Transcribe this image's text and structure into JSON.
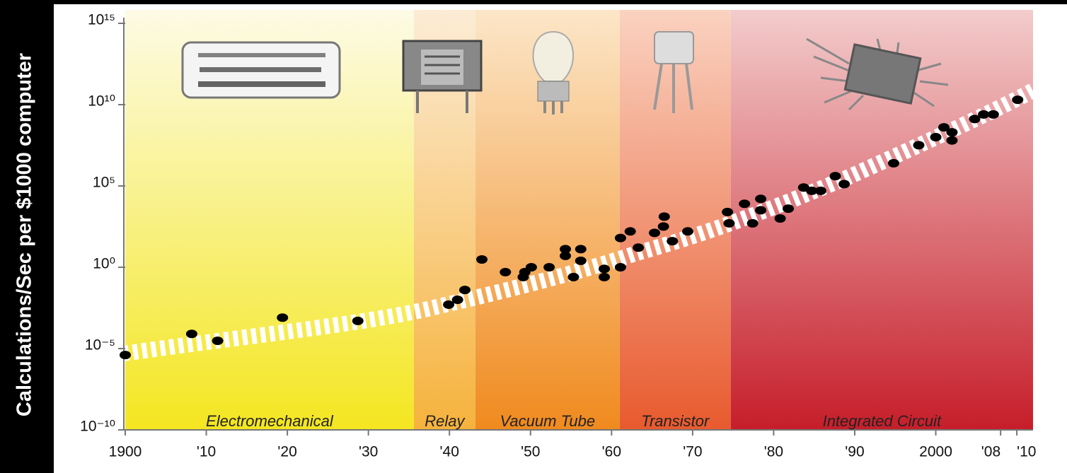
{
  "chart_data": {
    "type": "scatter",
    "y_label": "Calculations/Sec per $1000 computer",
    "log_y": true,
    "xlim": [
      1900,
      2012
    ],
    "ylim": [
      1e-10,
      1000000000000000.0
    ],
    "xticks": [
      1900,
      {
        "value": 1910,
        "label": "'10"
      },
      {
        "value": 1920,
        "label": "'20"
      },
      {
        "value": 1930,
        "label": "'30"
      },
      {
        "value": 1940,
        "label": "'40"
      },
      {
        "value": 1950,
        "label": "'50"
      },
      {
        "value": 1960,
        "label": "'60"
      },
      {
        "value": 1970,
        "label": "'70"
      },
      {
        "value": 1980,
        "label": "'80"
      },
      {
        "value": 1990,
        "label": "'90"
      },
      2000,
      {
        "value": 2008,
        "label": "'08"
      },
      {
        "value": 2010,
        "label": "'10"
      }
    ],
    "yticks": [
      {
        "value": 1e-10,
        "label": "10⁻¹⁰"
      },
      {
        "value": 1e-05,
        "label": "10⁻⁵"
      },
      {
        "value": 1,
        "label": "10⁰"
      },
      {
        "value": 100000,
        "label": "10⁵"
      },
      {
        "value": 10000000000,
        "label": "10¹⁰"
      },
      {
        "value": 1000000000000000.0,
        "label": "10¹⁵"
      }
    ],
    "regions": [
      {
        "label": "Electromechanical",
        "start": 1900,
        "end": 1935.6,
        "color_top": "#fdfbe6",
        "color_bottom": "#f4e620"
      },
      {
        "label": "Relay",
        "start": 1935.6,
        "end": 1943.2,
        "color_top": "#fcecd6",
        "color_bottom": "#f6b23c"
      },
      {
        "label": "Vacuum Tube",
        "start": 1943.2,
        "end": 1961,
        "color_top": "#fce6c8",
        "color_bottom": "#f08a1e"
      },
      {
        "label": "Transistor",
        "start": 1961,
        "end": 1974.7,
        "color_top": "#fad2c0",
        "color_bottom": "#e85a2e"
      },
      {
        "label": "Integrated Circuit",
        "start": 1974.7,
        "end": 2012,
        "color_top": "#f3cccc",
        "color_bottom": "#c61e2a"
      }
    ],
    "series": [
      {
        "color": "#000000",
        "x": [
          1900,
          1908.2,
          1911.4,
          1919.4,
          1928.7,
          1939.9,
          1941,
          1941.9,
          1944,
          1946.9,
          1949.1,
          1949.3,
          1950.1,
          1952.3,
          1954.3,
          1954.3,
          1955.3,
          1956.2,
          1956.2,
          1959.1,
          1959.1,
          1961.1,
          1961.1,
          1962.3,
          1963.3,
          1965.3,
          1966.4,
          1966.5,
          1967.5,
          1969.4,
          1974.3,
          1974.5,
          1976.4,
          1977.4,
          1978.4,
          1978.4,
          1980.8,
          1981.8,
          1983.7,
          1984.7,
          1985.8,
          1987.6,
          1988.7,
          1994.8,
          1997.9,
          2000,
          2001,
          2002,
          2002,
          2004.8,
          2005.9,
          2007.1,
          2010.1
        ],
        "values": [
          4e-06,
          8e-05,
          3e-05,
          0.0008,
          0.0005,
          0.005,
          0.01,
          0.04,
          3,
          0.5,
          0.25,
          0.5,
          1,
          1,
          13,
          5,
          0.25,
          13,
          2.5,
          0.8,
          0.25,
          1,
          63,
          160,
          16,
          130,
          320,
          1300,
          40,
          160,
          2500,
          500,
          8000,
          500,
          3200,
          16000,
          1000,
          4000,
          80000,
          50000,
          50000,
          400000,
          130000,
          2500000,
          32000000,
          100000000,
          400000000,
          200000000,
          63000000,
          1300000000,
          2500000000,
          2500000000,
          20000000000
        ]
      }
    ]
  }
}
